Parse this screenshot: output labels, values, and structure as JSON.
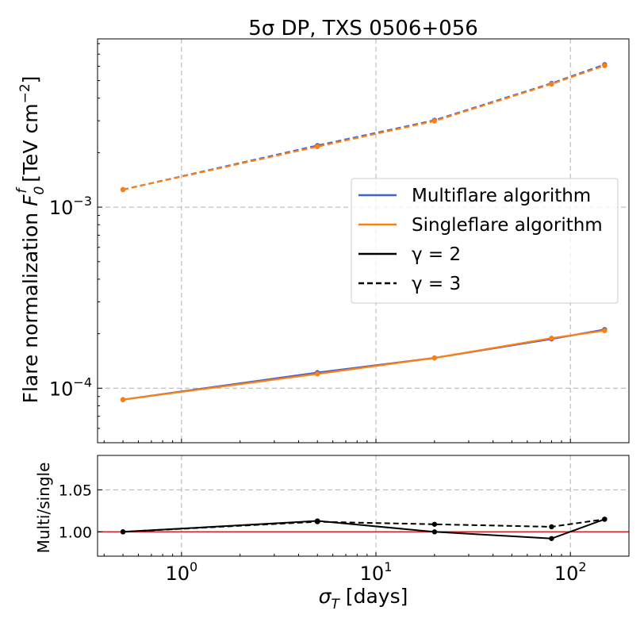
{
  "chart_data": [
    {
      "type": "line",
      "panel": "main",
      "title": "5σ DP, TXS 0506+056",
      "ylabel": "Flare normalization F_0^f [TeV cm^-2]",
      "xlabel": "",
      "xscale": "log",
      "yscale": "log",
      "xlim": [
        0.37,
        200
      ],
      "ylim": [
        5e-05,
        0.0085
      ],
      "grid": true,
      "legend_position": "center-right",
      "x": [
        0.5,
        5,
        20,
        80,
        150
      ],
      "series": [
        {
          "name": "Multiflare algorithm, γ=2",
          "algorithm": "multi",
          "gamma": 2,
          "color": "#4361d6",
          "dash": "solid",
          "values": [
            8.65e-05,
            0.000122,
            0.000147,
            0.000187,
            0.000211
          ]
        },
        {
          "name": "Singleflare algorithm, γ=2",
          "algorithm": "single",
          "gamma": 2,
          "color": "#ff7f0e",
          "dash": "solid",
          "values": [
            8.65e-05,
            0.00012,
            0.000147,
            0.000189,
            0.000208
          ]
        },
        {
          "name": "Multiflare algorithm, γ=3",
          "algorithm": "multi",
          "gamma": 3,
          "color": "#4361d6",
          "dash": "dashed",
          "values": [
            0.00125,
            0.00219,
            0.00302,
            0.00483,
            0.00613
          ]
        },
        {
          "name": "Singleflare algorithm, γ=3",
          "algorithm": "single",
          "gamma": 3,
          "color": "#ff7f0e",
          "dash": "dashed",
          "values": [
            0.00125,
            0.00216,
            0.00299,
            0.00479,
            0.00605
          ]
        }
      ],
      "yticks": [
        {
          "value": 0.001,
          "base": "10",
          "exp": "−3"
        },
        {
          "value": 0.0001,
          "base": "10",
          "exp": "−4"
        }
      ],
      "legend": [
        {
          "label": "Multiflare algorithm",
          "color": "#4361d6",
          "dash": "solid"
        },
        {
          "label": "Singleflare algorithm",
          "color": "#ff7f0e",
          "dash": "solid"
        },
        {
          "label": "γ = 2",
          "color": "#000000",
          "dash": "solid"
        },
        {
          "label": "γ = 3",
          "color": "#000000",
          "dash": "dashed"
        }
      ]
    },
    {
      "type": "line",
      "panel": "ratio",
      "ylabel": "Multi/single",
      "xlabel": "σ_T [days]",
      "xscale": "log",
      "yscale": "linear",
      "xlim": [
        0.37,
        200
      ],
      "ylim": [
        0.971,
        1.091
      ],
      "grid": true,
      "reference_line": {
        "value": 1.0,
        "color": "#d62728"
      },
      "x": [
        0.5,
        5,
        20,
        80,
        150
      ],
      "series": [
        {
          "name": "γ = 2",
          "color": "#000000",
          "dash": "solid",
          "values": [
            1.0,
            1.013,
            1.0,
            0.992,
            1.015
          ]
        },
        {
          "name": "γ = 3",
          "color": "#000000",
          "dash": "dashed",
          "values": [
            1.0,
            1.012,
            1.009,
            1.006,
            1.015
          ]
        }
      ],
      "yticks": [
        {
          "value": 1.05,
          "label": "1.05"
        },
        {
          "value": 1.0,
          "label": "1.00"
        }
      ],
      "xticks": [
        {
          "value": 1,
          "base": "10",
          "exp": "0"
        },
        {
          "value": 10,
          "base": "10",
          "exp": "1"
        },
        {
          "value": 100,
          "base": "10",
          "exp": "2"
        }
      ]
    }
  ]
}
